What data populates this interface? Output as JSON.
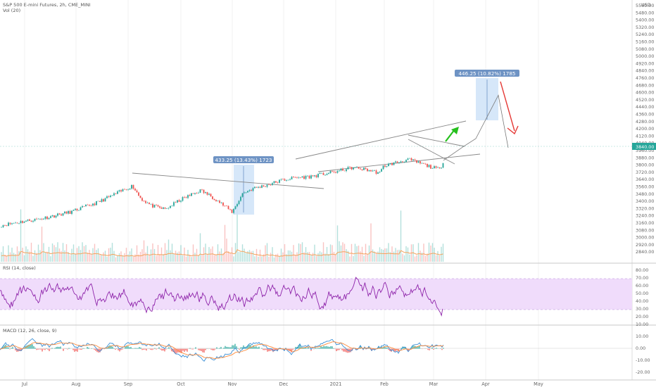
{
  "header": {
    "title": "S&P 500 E-mini Futures, 2h, CME_MINI",
    "volume_label": "Vol (20)",
    "currency": "USD"
  },
  "colors": {
    "up": "#26a69a",
    "down": "#ef5350",
    "volume_ma": "#f5a35c",
    "rsi_line": "#8e24aa",
    "rsi_band": "#f0dcfb",
    "macd_line": "#3a8fd6",
    "signal_line": "#ff8a3a",
    "box_fill": "#cfe3f8",
    "box_label": "#6e93c4",
    "trend": "#888888",
    "arrow_up": "#26c01e",
    "arrow_down": "#e53935",
    "current_price_badge": "#26a69a"
  },
  "main_axis": {
    "labels": [
      "5560.00",
      "5480.00",
      "5400.00",
      "5320.00",
      "5240.00",
      "5160.00",
      "5080.00",
      "5000.00",
      "4920.00",
      "4840.00",
      "4760.00",
      "4680.00",
      "4600.00",
      "4520.00",
      "4440.00",
      "4360.00",
      "4280.00",
      "4200.00",
      "4120.00",
      "4040.00",
      "3960.00",
      "3880.00",
      "3800.00",
      "3720.00",
      "3640.00",
      "3560.00",
      "3480.00",
      "3400.00",
      "3320.00",
      "3240.00",
      "3160.00",
      "3080.00",
      "3000.00",
      "2920.00",
      "2840.00"
    ],
    "current_price": "3840.00"
  },
  "x_axis": {
    "labels": [
      "Jul",
      "Aug",
      "Sep",
      "Oct",
      "Nov",
      "Dec",
      "2021",
      "Feb",
      "Mar",
      "Apr",
      "May"
    ]
  },
  "measure_boxes": [
    {
      "label": "433.25 (13.43%) 1723"
    },
    {
      "label": "446.25 (10.82%) 1785"
    }
  ],
  "rsi": {
    "label": "RSI (14, close)",
    "axis_labels": [
      "80.00",
      "70.00",
      "60.00",
      "50.00",
      "40.00",
      "30.00",
      "20.00",
      "10.00"
    ]
  },
  "macd": {
    "label": "MACD (12, 26, close, 9)",
    "axis_labels": [
      "10.00",
      "0.00",
      "-10.00",
      "-20.00"
    ]
  },
  "chart_data": [
    {
      "type": "line",
      "name": "price",
      "x": [
        "Jul",
        "Aug",
        "Sep",
        "Oct",
        "Nov",
        "Dec",
        "2021",
        "Feb",
        "Mar"
      ],
      "series": [
        {
          "values": [
            3150,
            3260,
            3560,
            3300,
            3440,
            3650,
            3740,
            3800,
            3840
          ]
        }
      ],
      "projection": [
        3840,
        3990,
        4080,
        4560,
        3980
      ],
      "ylim": [
        2840,
        5560
      ]
    },
    {
      "type": "line",
      "name": "rsi",
      "ylim": [
        10,
        80
      ],
      "band": [
        30,
        70
      ]
    },
    {
      "type": "bar",
      "name": "macd",
      "ylim": [
        -20,
        10
      ]
    }
  ]
}
